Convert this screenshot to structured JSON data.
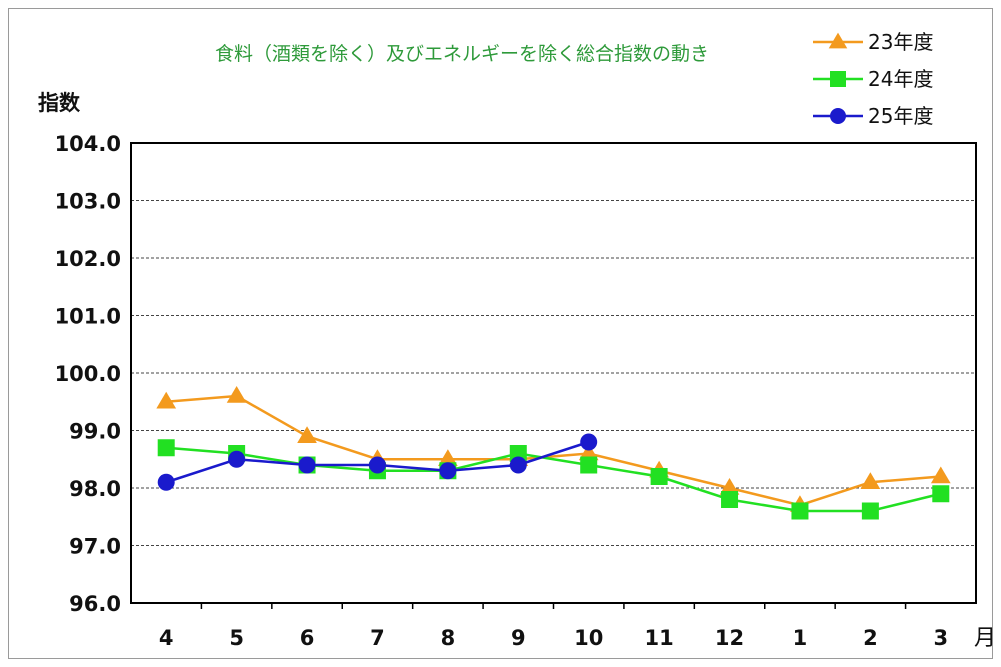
{
  "chart_data": {
    "type": "line",
    "title": "食料（酒類を除く）及びエネルギーを除く総合指数の動き",
    "ylabel": "指数",
    "xlabel": "月",
    "ylim": [
      96.0,
      104.0
    ],
    "yticks": [
      "96.0",
      "97.0",
      "98.0",
      "99.0",
      "100.0",
      "101.0",
      "102.0",
      "103.0",
      "104.0"
    ],
    "categories": [
      "4",
      "5",
      "6",
      "7",
      "8",
      "9",
      "10",
      "11",
      "12",
      "1",
      "2",
      "3"
    ],
    "grid": true,
    "legend_position": "top-right",
    "series": [
      {
        "name": "23年度",
        "color": "#f39a1e",
        "marker": "triangle",
        "values": [
          99.5,
          99.6,
          98.9,
          98.5,
          98.5,
          98.5,
          98.6,
          98.3,
          98.0,
          97.7,
          98.1,
          98.2
        ]
      },
      {
        "name": "24年度",
        "color": "#22e022",
        "marker": "square",
        "values": [
          98.7,
          98.6,
          98.4,
          98.3,
          98.3,
          98.6,
          98.4,
          98.2,
          97.8,
          97.6,
          97.6,
          97.9
        ]
      },
      {
        "name": "25年度",
        "color": "#1a1acc",
        "marker": "circle",
        "values": [
          98.1,
          98.5,
          98.4,
          98.4,
          98.3,
          98.4,
          98.8,
          null,
          null,
          null,
          null,
          null
        ]
      }
    ]
  }
}
